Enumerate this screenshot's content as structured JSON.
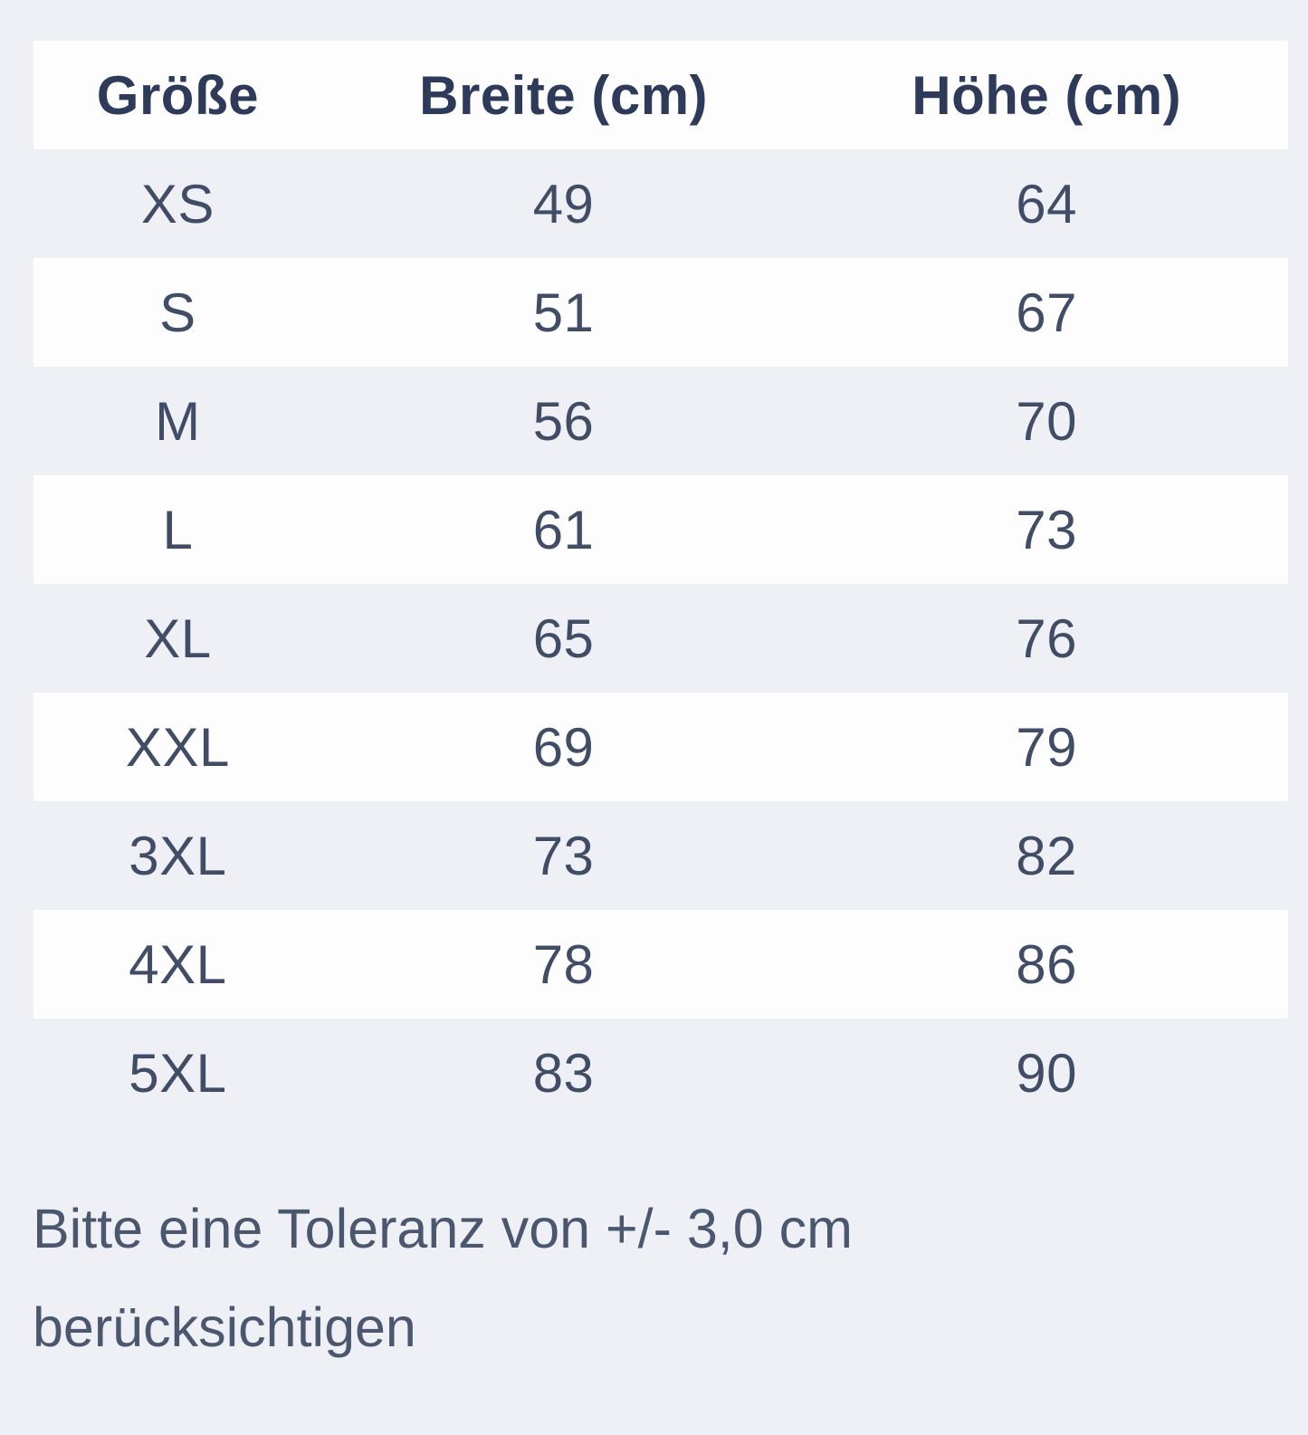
{
  "chart_data": {
    "type": "table",
    "columns": [
      "Größe",
      "Breite (cm)",
      "Höhe (cm)"
    ],
    "rows": [
      {
        "size": "XS",
        "breite": "49",
        "hoehe": "64"
      },
      {
        "size": "S",
        "breite": "51",
        "hoehe": "67"
      },
      {
        "size": "M",
        "breite": "56",
        "hoehe": "70"
      },
      {
        "size": "L",
        "breite": "61",
        "hoehe": "73"
      },
      {
        "size": "XL",
        "breite": "65",
        "hoehe": "76"
      },
      {
        "size": "XXL",
        "breite": "69",
        "hoehe": "79"
      },
      {
        "size": "3XL",
        "breite": "73",
        "hoehe": "82"
      },
      {
        "size": "4XL",
        "breite": "78",
        "hoehe": "86"
      },
      {
        "size": "5XL",
        "breite": "83",
        "hoehe": "90"
      }
    ]
  },
  "note": {
    "line1": "Bitte eine Toleranz von +/- 3,0 cm",
    "line2": "berücksichtigen"
  },
  "colors": {
    "page_background": "#eef0f5",
    "stripe_row_background": "#fdfdfe",
    "header_text": "#2d3a59",
    "cell_text": "#414d67",
    "note_text": "#4b566f"
  }
}
